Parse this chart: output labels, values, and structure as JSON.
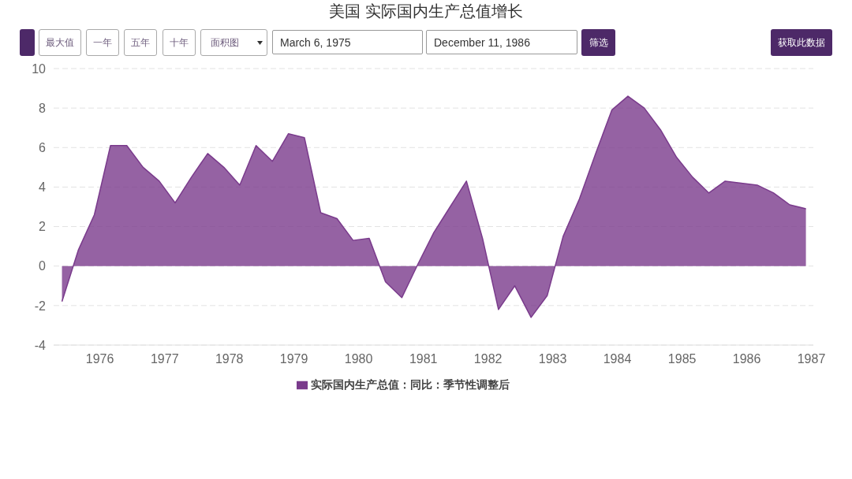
{
  "chart_data": {
    "type": "area",
    "title": "美国 实际国内生产总值增长",
    "x": [
      "1975-06",
      "1975-09",
      "1975-12",
      "1976-03",
      "1976-06",
      "1976-09",
      "1976-12",
      "1977-03",
      "1977-06",
      "1977-09",
      "1977-12",
      "1978-03",
      "1978-06",
      "1978-09",
      "1978-12",
      "1979-03",
      "1979-06",
      "1979-09",
      "1979-12",
      "1980-03",
      "1980-06",
      "1980-09",
      "1980-12",
      "1981-03",
      "1981-06",
      "1981-09",
      "1981-12",
      "1982-03",
      "1982-06",
      "1982-09",
      "1982-12",
      "1983-03",
      "1983-06",
      "1983-09",
      "1983-12",
      "1984-03",
      "1984-06",
      "1984-09",
      "1984-12",
      "1985-03",
      "1985-06",
      "1985-09",
      "1985-12",
      "1986-03",
      "1986-06",
      "1986-09",
      "1986-12"
    ],
    "series": [
      {
        "name": "实际国内生产总值：同比：季节性调整后",
        "color": "#7a3b8c",
        "values": [
          -1.8,
          0.8,
          2.6,
          6.1,
          6.1,
          5.0,
          4.3,
          3.2,
          4.5,
          5.7,
          5.0,
          4.1,
          6.1,
          5.3,
          6.7,
          6.5,
          2.7,
          2.4,
          1.3,
          1.4,
          -0.8,
          -1.6,
          0.1,
          1.7,
          3.0,
          4.3,
          1.4,
          -2.2,
          -1.0,
          -2.6,
          -1.5,
          1.5,
          3.4,
          5.7,
          7.9,
          8.6,
          8.0,
          6.9,
          5.5,
          4.5,
          3.7,
          4.3,
          4.2,
          4.1,
          3.7,
          3.1,
          2.9
        ]
      }
    ],
    "xlim": [
      "1975-04-15",
      "1987-01-12"
    ],
    "xticks": [
      "1976",
      "1977",
      "1978",
      "1979",
      "1980",
      "1981",
      "1982",
      "1983",
      "1984",
      "1985",
      "1986",
      "1987"
    ],
    "ylim": [
      -4,
      10
    ],
    "yticks": [
      -4,
      -2,
      0,
      2,
      4,
      6,
      8,
      10
    ],
    "grid": "y",
    "legend": "bottom",
    "annotations": [
      "最大值",
      "一年",
      "五年",
      "十年",
      "面积图",
      "March 6, 1975",
      "December 11, 1986",
      "筛选",
      "获取此数据"
    ]
  }
}
